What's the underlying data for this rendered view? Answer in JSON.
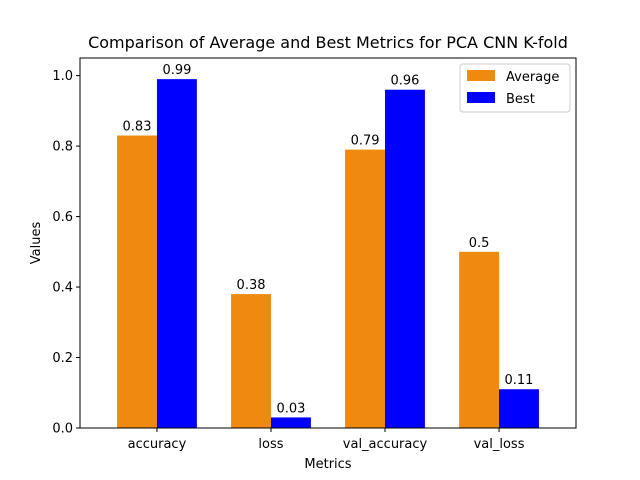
{
  "chart_data": {
    "type": "bar",
    "title": "Comparison of Average and Best Metrics for PCA CNN K-fold",
    "xlabel": "Metrics",
    "ylabel": "Values",
    "ylim": [
      0,
      1.05
    ],
    "yticks": [
      0.0,
      0.2,
      0.4,
      0.6,
      0.8,
      1.0
    ],
    "ytick_labels": [
      "0.0",
      "0.2",
      "0.4",
      "0.6",
      "0.8",
      "1.0"
    ],
    "categories": [
      "accuracy",
      "loss",
      "val_accuracy",
      "val_loss"
    ],
    "series": [
      {
        "name": "Average",
        "color": "#f0890f",
        "values": [
          0.83,
          0.38,
          0.79,
          0.5
        ],
        "labels": [
          "0.83",
          "0.38",
          "0.79",
          "0.5"
        ]
      },
      {
        "name": "Best",
        "color": "#0000ff",
        "values": [
          0.99,
          0.03,
          0.96,
          0.11
        ],
        "labels": [
          "0.99",
          "0.03",
          "0.96",
          "0.11"
        ]
      }
    ],
    "legend": {
      "position": "top-right"
    },
    "grid": false
  }
}
